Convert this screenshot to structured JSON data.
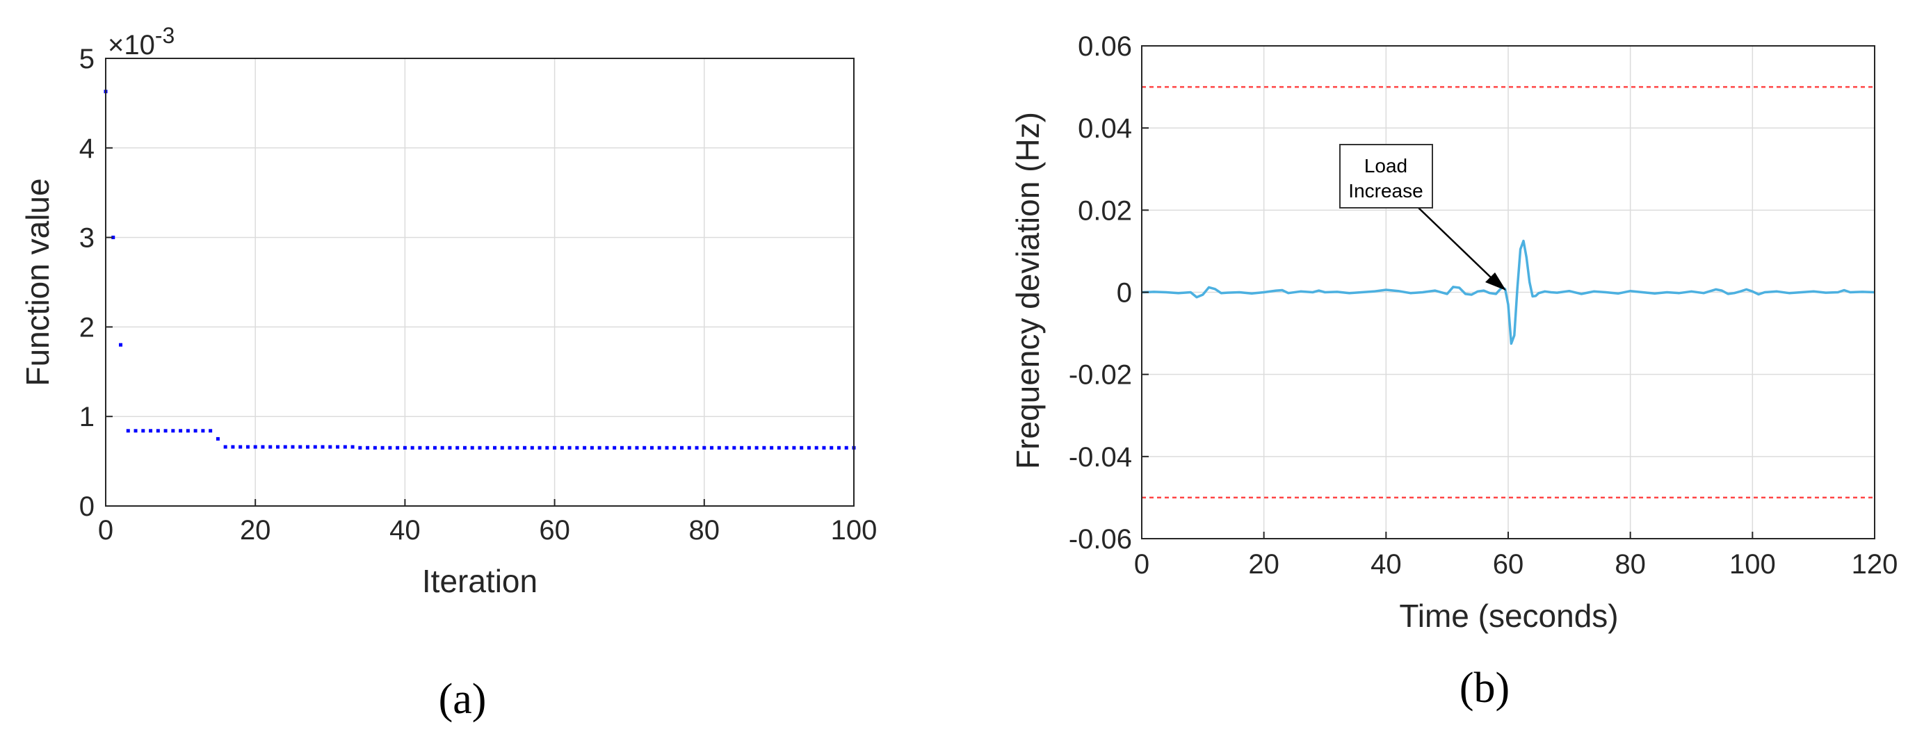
{
  "chart_data": [
    {
      "panel_label": "(a)",
      "type": "scatter",
      "title": "",
      "xlabel": "Iteration",
      "ylabel": "Function value",
      "exponent_label": "×10",
      "exponent_power": "-3",
      "xlim": [
        0,
        100
      ],
      "ylim": [
        0,
        5
      ],
      "xticks": [
        "0",
        "20",
        "40",
        "60",
        "80",
        "100"
      ],
      "yticks": [
        "0",
        "1",
        "2",
        "3",
        "4",
        "5"
      ],
      "grid": true,
      "marker_color": "#0000ff",
      "series": [
        {
          "values_note_free": true,
          "x": [
            0,
            1,
            2,
            3,
            4,
            5,
            6,
            7,
            8,
            9,
            10,
            11,
            12,
            13,
            14,
            15,
            16,
            17,
            18,
            19,
            20,
            21,
            22,
            23,
            24,
            25,
            26,
            27,
            28,
            29,
            30,
            31,
            32,
            33,
            34,
            35,
            36,
            37,
            38,
            39,
            40,
            41,
            42,
            43,
            44,
            45,
            46,
            47,
            48,
            49,
            50,
            51,
            52,
            53,
            54,
            55,
            56,
            57,
            58,
            59,
            60,
            61,
            62,
            63,
            64,
            65,
            66,
            67,
            68,
            69,
            70,
            71,
            72,
            73,
            74,
            75,
            76,
            77,
            78,
            79,
            80,
            81,
            82,
            83,
            84,
            85,
            86,
            87,
            88,
            89,
            90,
            91,
            92,
            93,
            94,
            95,
            96,
            97,
            98,
            99,
            100
          ],
          "y": [
            4.63,
            3.0,
            1.8,
            0.84,
            0.84,
            0.84,
            0.84,
            0.84,
            0.84,
            0.84,
            0.84,
            0.84,
            0.84,
            0.84,
            0.84,
            0.75,
            0.66,
            0.66,
            0.66,
            0.66,
            0.66,
            0.66,
            0.66,
            0.66,
            0.66,
            0.66,
            0.66,
            0.66,
            0.66,
            0.66,
            0.66,
            0.66,
            0.66,
            0.66,
            0.65,
            0.65,
            0.65,
            0.65,
            0.65,
            0.65,
            0.65,
            0.65,
            0.65,
            0.65,
            0.65,
            0.65,
            0.65,
            0.65,
            0.65,
            0.65,
            0.65,
            0.65,
            0.65,
            0.65,
            0.65,
            0.65,
            0.65,
            0.65,
            0.65,
            0.65,
            0.65,
            0.65,
            0.65,
            0.65,
            0.65,
            0.65,
            0.65,
            0.65,
            0.65,
            0.65,
            0.65,
            0.65,
            0.65,
            0.65,
            0.65,
            0.65,
            0.65,
            0.65,
            0.65,
            0.65,
            0.65,
            0.65,
            0.65,
            0.65,
            0.65,
            0.65,
            0.65,
            0.65,
            0.65,
            0.65,
            0.65,
            0.65,
            0.65,
            0.65,
            0.65,
            0.65,
            0.65,
            0.65,
            0.65,
            0.65,
            0.65
          ]
        }
      ]
    },
    {
      "panel_label": "(b)",
      "type": "line",
      "title": "",
      "xlabel": "Time (seconds)",
      "ylabel": "Frequency deviation (Hz)",
      "xlim": [
        0,
        120
      ],
      "ylim": [
        -0.06,
        0.06
      ],
      "xticks": [
        "0",
        "20",
        "40",
        "60",
        "80",
        "100",
        "120"
      ],
      "yticks": [
        "-0.06",
        "-0.04",
        "-0.02",
        "0",
        "0.02",
        "0.04",
        "0.06"
      ],
      "grid": true,
      "line_color": "#4cb0e0",
      "limit_color": "#ff4444",
      "limits": [
        0.05,
        -0.05
      ],
      "annotation": {
        "lines": [
          "Load",
          "Increase"
        ],
        "x": 59,
        "y": 0
      },
      "series": [
        {
          "x": [
            0,
            2,
            4,
            6,
            8,
            9,
            10,
            11,
            12,
            13,
            14,
            16,
            18,
            20,
            22,
            23,
            24,
            26,
            28,
            29,
            30,
            32,
            34,
            36,
            38,
            40,
            42,
            44,
            46,
            48,
            50,
            51,
            52,
            53,
            54,
            55,
            56,
            57,
            58,
            58.5,
            59,
            59.5,
            60,
            60.5,
            61,
            61.5,
            62,
            62.5,
            63,
            63.5,
            64,
            64.5,
            65,
            66,
            67,
            68,
            70,
            72,
            74,
            76,
            78,
            80,
            82,
            84,
            86,
            88,
            90,
            92,
            94,
            95,
            96,
            97,
            98,
            99,
            100,
            101,
            102,
            104,
            106,
            108,
            110,
            112,
            114,
            115,
            116,
            118,
            120
          ],
          "y": [
            0,
            0.0001,
            0,
            -0.0002,
            0,
            -0.0012,
            -0.0006,
            0.0012,
            0.0008,
            -0.0002,
            -0.0001,
            0,
            -0.0003,
            0,
            0.0004,
            0.0005,
            -0.0002,
            0.0002,
            0,
            0.0004,
            0,
            0.0001,
            -0.0002,
            0,
            0.0002,
            0.0006,
            0.0003,
            -0.0002,
            0,
            0.0004,
            -0.0004,
            0.0013,
            0.0011,
            -0.0004,
            -0.0006,
            0.0002,
            0.0004,
            -0.0002,
            -0.0004,
            0.0004,
            0.0012,
            0.0008,
            -0.003,
            -0.0125,
            -0.0105,
            0.001,
            0.0105,
            0.0125,
            0.0085,
            0.0025,
            -0.001,
            -0.0009,
            -0.0002,
            0.0002,
            0,
            -0.0001,
            0.0003,
            -0.0004,
            0.0002,
            0,
            -0.0003,
            0.0003,
            0,
            -0.0003,
            0,
            -0.0002,
            0.0002,
            -0.0002,
            0.0007,
            0.0004,
            -0.0004,
            -0.0002,
            0.0002,
            0.0007,
            0.0002,
            -0.0005,
            0,
            0.0002,
            -0.0002,
            0,
            0.0002,
            -0.0001,
            0,
            0.0005,
            0,
            0.0001,
            0
          ]
        }
      ]
    }
  ]
}
